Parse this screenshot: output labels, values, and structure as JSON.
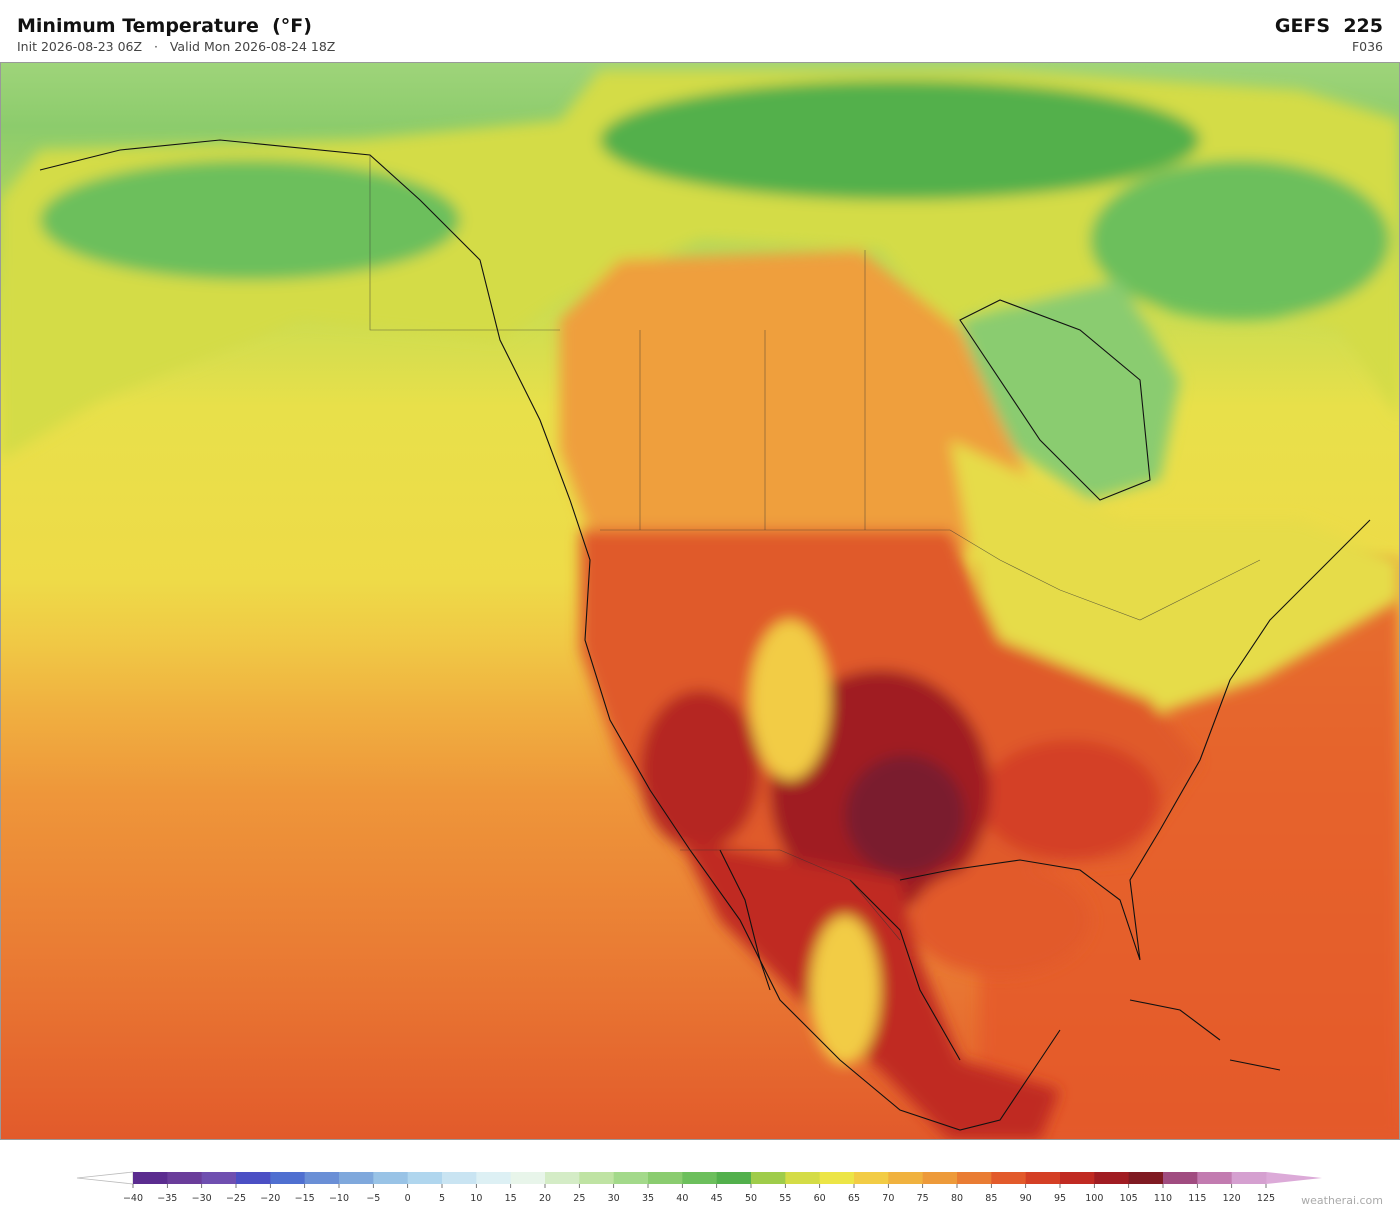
{
  "header": {
    "title": "Minimum Temperature  (°F)",
    "subtitle": "Init 2026-08-23 06Z   ·   Valid Mon 2026-08-24 18Z",
    "model": "GEFS  225",
    "forecast_hour": "F036"
  },
  "colorbar": {
    "ticks": [
      {
        "value": -40,
        "label": "−40"
      },
      {
        "value": -35,
        "label": "−35"
      },
      {
        "value": -30,
        "label": "−30"
      },
      {
        "value": -25,
        "label": "−25"
      },
      {
        "value": -20,
        "label": "−20"
      },
      {
        "value": -15,
        "label": "−15"
      },
      {
        "value": -10,
        "label": "−10"
      },
      {
        "value": -5,
        "label": "−5"
      },
      0,
      5,
      10,
      15,
      20,
      25,
      30,
      35,
      40,
      45,
      50,
      55,
      60,
      65,
      70,
      75,
      80,
      85,
      90,
      95,
      100,
      105,
      110,
      115,
      120,
      125
    ],
    "colors": [
      "#5b2c8f",
      "#6a3d9a",
      "#6f4fb0",
      "#4b4fc4",
      "#4f6fd0",
      "#6a8fd6",
      "#7fa8dc",
      "#99c3e6",
      "#b0d6ee",
      "#c9e4f2",
      "#ddf0f4",
      "#e8f5ea",
      "#d4ecc6",
      "#bfe3a3",
      "#a3d98a",
      "#8acc6f",
      "#6cbf5c",
      "#52b04c",
      "#9fcc4a",
      "#d4dc46",
      "#ece546",
      "#f2cc45",
      "#f0b23f",
      "#ed9a3a",
      "#e97c33",
      "#e25a2b",
      "#d43f25",
      "#c02a22",
      "#a01c22",
      "#7f1a22",
      "#a04c80",
      "#c27bb0",
      "#d5a0d0"
    ],
    "extend_low": "#ffffff",
    "extend_high": "#dcaad8"
  },
  "footer": {
    "watermark": "weatherai.com"
  }
}
